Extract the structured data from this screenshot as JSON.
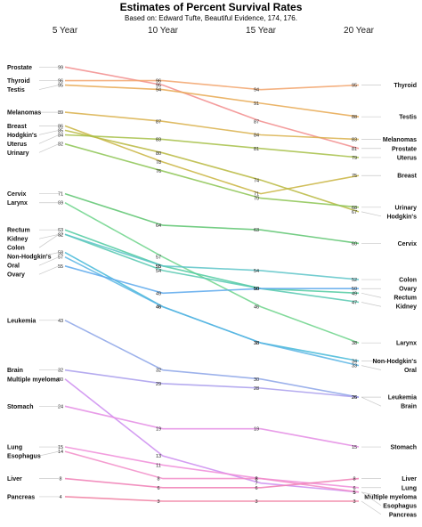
{
  "chart_data": {
    "type": "line",
    "title": "Estimates of Percent Survival Rates",
    "subtitle": "Based on: Edward Tufte, Beautiful Evidence, 174, 176.",
    "columns": [
      "5 Year",
      "10 Year",
      "15 Year",
      "20 Year"
    ],
    "series": [
      {
        "name": "Prostate",
        "values": [
          99,
          95,
          87,
          81
        ],
        "color": "#f28c8c"
      },
      {
        "name": "Thyroid",
        "values": [
          96,
          96,
          94,
          95
        ],
        "color": "#f2a36b"
      },
      {
        "name": "Testis",
        "values": [
          95,
          94,
          91,
          88
        ],
        "color": "#e8a850"
      },
      {
        "name": "Melanomas",
        "values": [
          89,
          87,
          84,
          83
        ],
        "color": "#d9b04a"
      },
      {
        "name": "Breast",
        "values": [
          86,
          78,
          71,
          75
        ],
        "color": "#c9b440"
      },
      {
        "name": "Hodgkin's",
        "values": [
          85,
          80,
          74,
          67
        ],
        "color": "#b8b840"
      },
      {
        "name": "Uterus",
        "values": [
          84,
          83,
          81,
          79
        ],
        "color": "#a6c046"
      },
      {
        "name": "Urinary",
        "values": [
          82,
          76,
          70,
          68
        ],
        "color": "#8cc452"
      },
      {
        "name": "Cervix",
        "values": [
          71,
          64,
          63,
          60
        ],
        "color": "#5cc46e"
      },
      {
        "name": "Larynx",
        "values": [
          69,
          57,
          46,
          38
        ],
        "color": "#6cd48a"
      },
      {
        "name": "Rectum",
        "values": [
          63,
          55,
          50,
          49
        ],
        "color": "#4fcaa0"
      },
      {
        "name": "Kidney",
        "values": [
          62,
          54,
          50,
          47
        ],
        "color": "#56c8b0"
      },
      {
        "name": "Colon",
        "values": [
          62,
          55,
          54,
          52
        ],
        "color": "#5cc4c8"
      },
      {
        "name": "Non-Hodgkin's",
        "values": [
          58,
          46,
          38,
          34
        ],
        "color": "#44b8d8"
      },
      {
        "name": "Oral",
        "values": [
          57,
          46,
          38,
          33
        ],
        "color": "#58b4e4"
      },
      {
        "name": "Ovary",
        "values": [
          55,
          49,
          50,
          50
        ],
        "color": "#5aa8ec"
      },
      {
        "name": "Leukemia",
        "values": [
          43,
          32,
          30,
          26
        ],
        "color": "#8ca4e8"
      },
      {
        "name": "Brain",
        "values": [
          32,
          29,
          28,
          26
        ],
        "color": "#a89cec"
      },
      {
        "name": "Multiple myeloma",
        "values": [
          30,
          13,
          7,
          5
        ],
        "color": "#cc8cf0"
      },
      {
        "name": "Stomach",
        "values": [
          24,
          19,
          19,
          15
        ],
        "color": "#e48ce4"
      },
      {
        "name": "Lung",
        "values": [
          15,
          11,
          8,
          6
        ],
        "color": "#f08cd8"
      },
      {
        "name": "Esophagus",
        "values": [
          14,
          8,
          8,
          5
        ],
        "color": "#f28cc8"
      },
      {
        "name": "Liver",
        "values": [
          8,
          6,
          6,
          8
        ],
        "color": "#f07cb4"
      },
      {
        "name": "Pancreas",
        "values": [
          4,
          3,
          3,
          3
        ],
        "color": "#f07ca0"
      }
    ]
  }
}
